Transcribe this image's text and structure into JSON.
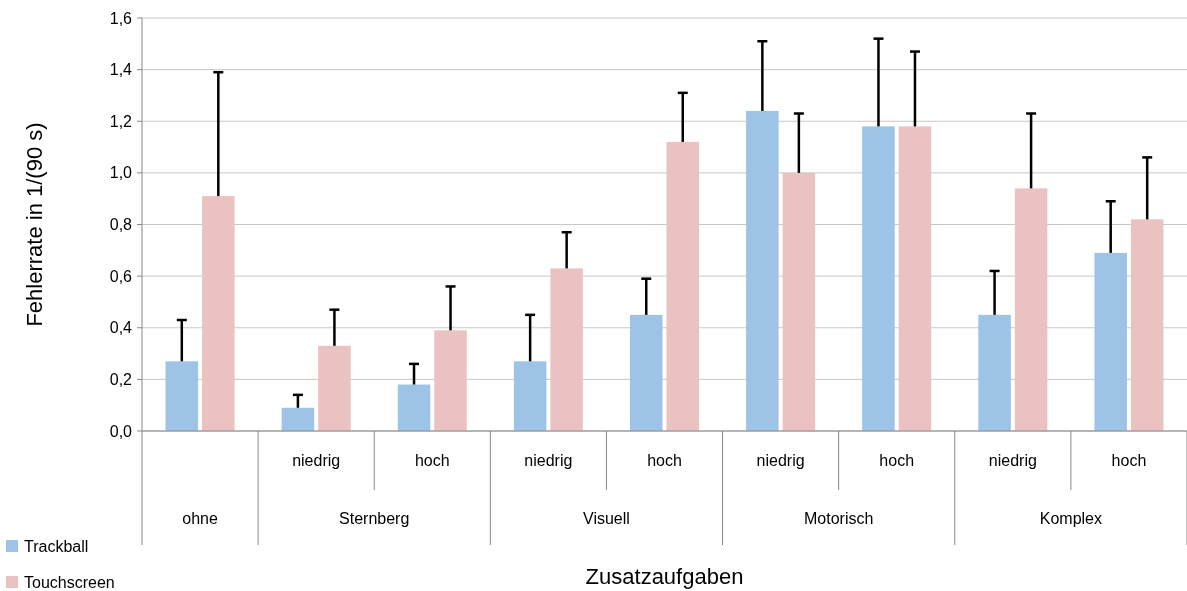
{
  "chart_data": {
    "type": "bar",
    "xlabel": "Zusatzaufgaben",
    "ylabel": "Fehlerrate in 1/(90 s)",
    "categories": [
      null,
      "niedrig",
      "hoch",
      "niedrig",
      "hoch",
      "niedrig",
      "hoch",
      "niedrig",
      "hoch"
    ],
    "annotations": [
      "ohne",
      "Sternberg",
      "Visuell",
      "Motorisch",
      "Komplex"
    ],
    "series": [
      {
        "name": "Trackball",
        "color": "#9dc3e6",
        "values": [
          0.27,
          0.09,
          0.18,
          0.27,
          0.45,
          1.24,
          1.18,
          0.45,
          0.69
        ],
        "errors": [
          [
            0.27,
            0.43
          ],
          [
            0.09,
            0.14
          ],
          [
            0.18,
            0.26
          ],
          [
            0.27,
            0.45
          ],
          [
            0.45,
            0.59
          ],
          [
            1.24,
            1.51
          ],
          [
            1.18,
            1.52
          ],
          [
            0.45,
            0.62
          ],
          [
            0.69,
            0.89
          ]
        ]
      },
      {
        "name": "Touchscreen",
        "color": "#ebc2c2",
        "values": [
          0.91,
          0.33,
          0.39,
          0.63,
          1.12,
          1.0,
          1.18,
          0.94,
          0.82
        ],
        "errors": [
          [
            0.91,
            1.39
          ],
          [
            0.33,
            0.47
          ],
          [
            0.39,
            0.56
          ],
          [
            0.63,
            0.77
          ],
          [
            1.12,
            1.31
          ],
          [
            1.0,
            1.23
          ],
          [
            1.18,
            1.47
          ],
          [
            0.94,
            1.23
          ],
          [
            0.82,
            1.06
          ]
        ]
      }
    ],
    "ylim": [
      0,
      1.6
    ],
    "yticks": [
      {
        "value": 0,
        "label": "0,0"
      },
      {
        "value": 0.2,
        "label": "0,2"
      },
      {
        "value": 0.4,
        "label": "0,4"
      },
      {
        "value": 0.6,
        "label": "0,6"
      },
      {
        "value": 0.8,
        "label": "0,8"
      },
      {
        "value": 1.0,
        "label": "1,0"
      },
      {
        "value": 1.2,
        "label": "1,2"
      },
      {
        "value": 1.4,
        "label": "1,4"
      },
      {
        "value": 1.6,
        "label": "1,6"
      }
    ],
    "grid": "y",
    "legend": "bottom left"
  }
}
